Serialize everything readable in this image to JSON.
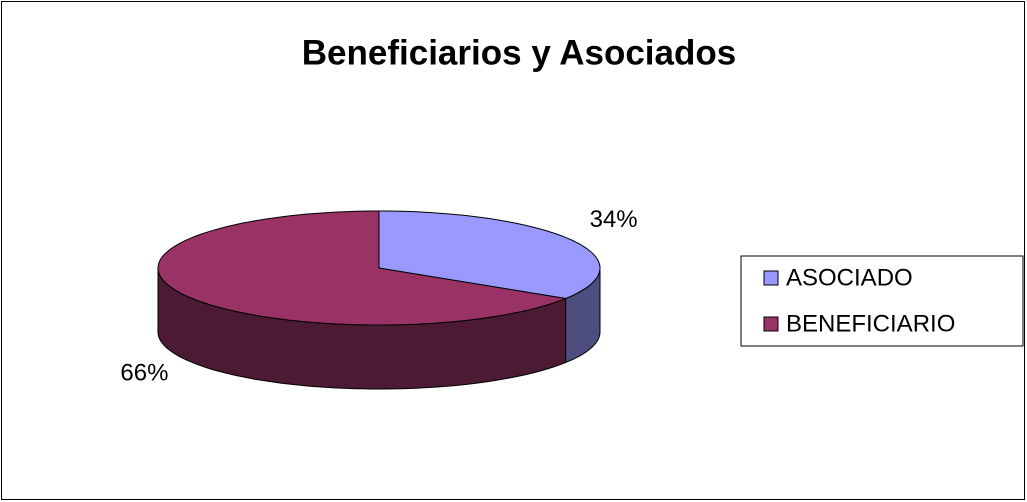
{
  "chart_data": {
    "type": "pie",
    "title": "Beneficiarios y Asociados",
    "categories": [
      "ASOCIADO",
      "BENEFICIARIO"
    ],
    "values": [
      34,
      66
    ],
    "value_labels": [
      "34%",
      "66%"
    ],
    "colors": [
      "#9999ff",
      "#993366"
    ],
    "legend": "right"
  }
}
